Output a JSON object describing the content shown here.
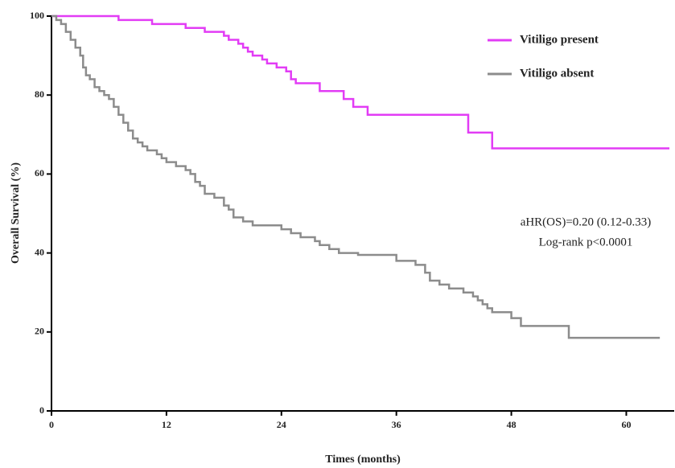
{
  "chart_data": {
    "type": "line",
    "drawstyle": "steps-post",
    "xlabel": "Times (months)",
    "ylabel": "Overall Survival (%)",
    "xlim": [
      0,
      65
    ],
    "ylim": [
      0,
      100
    ],
    "xticks": [
      0,
      12,
      24,
      36,
      48,
      60
    ],
    "yticks": [
      0,
      20,
      40,
      60,
      80,
      100
    ],
    "legend": "upper right",
    "annotations": [
      "aHR(OS)=0.20 (0.12-0.33)",
      "Log-rank p<0.0001"
    ],
    "series": [
      {
        "name": "Vitiligo present",
        "color": "#e23cf5",
        "x": [
          0,
          7,
          10.5,
          14,
          16,
          18,
          18.5,
          19.5,
          20,
          20.5,
          21,
          22,
          22.5,
          23.5,
          24.5,
          25,
          25.5,
          28,
          30.5,
          31.5,
          33,
          43.5,
          46,
          64.5
        ],
        "values": [
          100,
          99,
          98,
          97,
          96,
          95,
          94,
          93,
          92,
          91,
          90,
          89,
          88,
          87,
          86,
          84,
          83,
          81,
          79,
          77,
          75,
          70.5,
          66.5,
          66.5
        ]
      },
      {
        "name": "Vitiligo absent",
        "color": "#8c8c8c",
        "x": [
          0,
          0.5,
          1,
          1.5,
          2,
          2.5,
          3,
          3.3,
          3.6,
          4,
          4.5,
          5,
          5.5,
          6,
          6.5,
          7,
          7.5,
          8,
          8.5,
          9,
          9.5,
          10,
          11,
          11.5,
          12,
          13,
          14,
          14.5,
          15,
          15.5,
          16,
          17,
          18,
          18.5,
          19,
          20,
          21,
          24,
          25,
          26,
          27.5,
          28,
          29,
          30,
          32,
          36,
          38,
          39,
          39.5,
          40.5,
          41.5,
          43,
          44,
          44.5,
          45,
          45.5,
          46,
          48,
          49,
          54,
          63.5
        ],
        "values": [
          100,
          99,
          98,
          96,
          94,
          92,
          90,
          87,
          85,
          84,
          82,
          81,
          80,
          79,
          77,
          75,
          73,
          71,
          69,
          68,
          67,
          66,
          65,
          64,
          63,
          62,
          61,
          60,
          58,
          57,
          55,
          54,
          52,
          51,
          49,
          48,
          47,
          46,
          45,
          44,
          43,
          42,
          41,
          40,
          39.5,
          38,
          37,
          35,
          33,
          32,
          31,
          30,
          29,
          28,
          27,
          26,
          25,
          23.5,
          21.5,
          18.5,
          18.5
        ]
      }
    ]
  }
}
